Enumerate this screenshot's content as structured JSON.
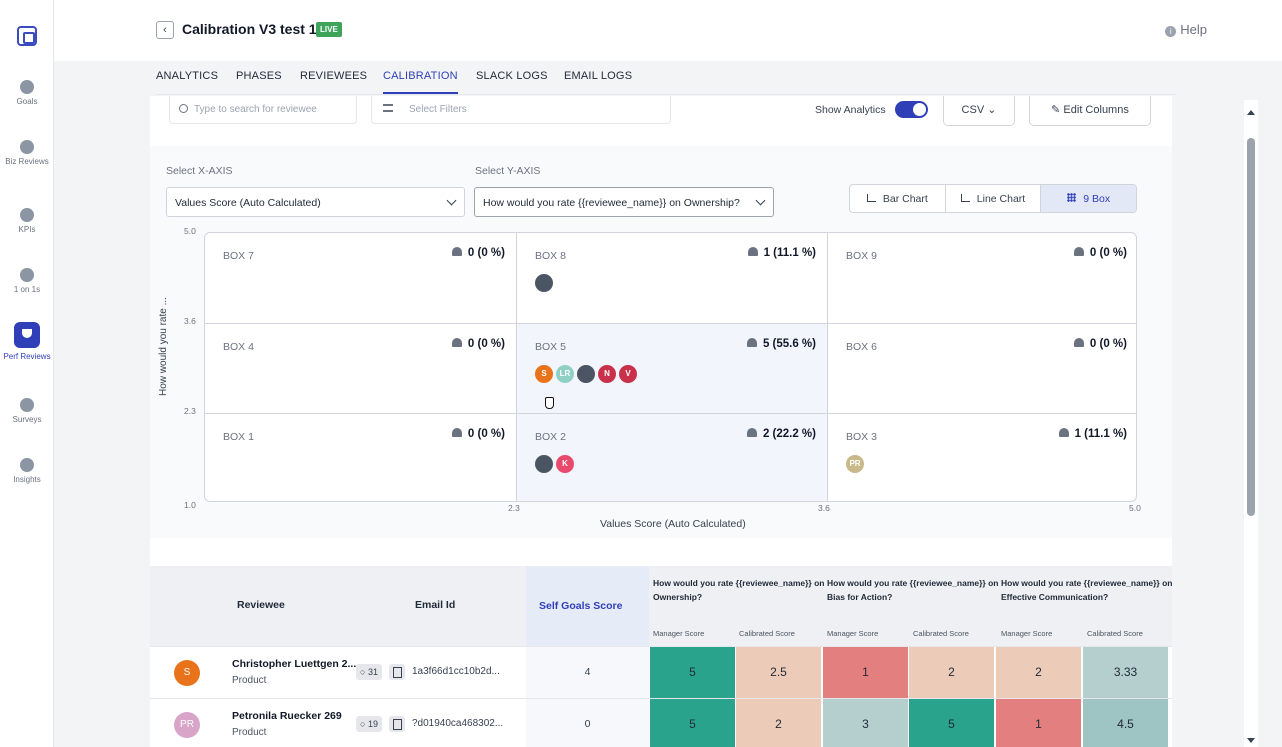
{
  "sidebar": {
    "items": [
      {
        "label": "Goals",
        "icon": "goals-icon"
      },
      {
        "label": "Biz Reviews",
        "icon": "biz-reviews-icon"
      },
      {
        "label": "KPIs",
        "icon": "kpis-icon"
      },
      {
        "label": "1 on 1s",
        "icon": "one-on-ones-icon"
      },
      {
        "label": "Perf Reviews",
        "icon": "perf-reviews-icon",
        "active": true
      },
      {
        "label": "Surveys",
        "icon": "surveys-icon"
      },
      {
        "label": "Insights",
        "icon": "insights-icon"
      }
    ]
  },
  "header": {
    "title": "Calibration V3 test 1",
    "badge": "LIVE",
    "help": "Help"
  },
  "tabs": [
    "ANALYTICS",
    "PHASES",
    "REVIEWEES",
    "CALIBRATION",
    "SLACK LOGS",
    "EMAIL LOGS"
  ],
  "active_tab": "CALIBRATION",
  "toolbar": {
    "search_placeholder": "Type to search for reviewee",
    "filter_placeholder": "Select Filters",
    "show_analytics": "Show Analytics",
    "csv": "CSV",
    "edit_columns": "Edit Columns"
  },
  "axes": {
    "x_label": "Select X-AXIS",
    "y_label": "Select Y-AXIS",
    "x_value": "Values Score (Auto Calculated)",
    "y_value": "How would you rate {{reviewee_name}} on Ownership?",
    "y_axis_title": "How would you rate ...",
    "x_axis_title": "Values Score (Auto Calculated)",
    "y_ticks": [
      "5.0",
      "3.6",
      "2.3",
      "1.0"
    ],
    "x_ticks": [
      "2.3",
      "3.6",
      "5.0"
    ]
  },
  "chart_modes": [
    "Bar Chart",
    "Line Chart",
    "9 Box"
  ],
  "active_chart_mode": "9 Box",
  "boxes": [
    {
      "name": "BOX 7",
      "count": "0 (0 %)",
      "avatars": []
    },
    {
      "name": "BOX 8",
      "count": "1 (11.1 %)",
      "avatars": [
        {
          "type": "photo"
        }
      ]
    },
    {
      "name": "BOX 9",
      "count": "0 (0 %)",
      "avatars": []
    },
    {
      "name": "BOX 4",
      "count": "0 (0 %)",
      "avatars": []
    },
    {
      "name": "BOX 5",
      "count": "5 (55.6 %)",
      "avatars": [
        {
          "text": "S",
          "color": "#e8731a"
        },
        {
          "text": "LR",
          "color": "#8fd0c4"
        },
        {
          "type": "photo"
        },
        {
          "text": "N",
          "color": "#c9304a"
        },
        {
          "text": "V",
          "color": "#c9304a"
        }
      ]
    },
    {
      "name": "BOX 6",
      "count": "0 (0 %)",
      "avatars": []
    },
    {
      "name": "BOX 1",
      "count": "0 (0 %)",
      "avatars": []
    },
    {
      "name": "BOX 2",
      "count": "2 (22.2 %)",
      "avatars": [
        {
          "type": "photo"
        },
        {
          "text": "K",
          "color": "#e94a6b"
        }
      ]
    },
    {
      "name": "BOX 3",
      "count": "1 (11.1 %)",
      "avatars": [
        {
          "text": "PR",
          "color": "#c9b98a"
        }
      ]
    }
  ],
  "table": {
    "columns": {
      "reviewee": "Reviewee",
      "email": "Email Id",
      "self_goals": "Self Goals Score",
      "q1": "How would you rate {{reviewee_name}} on Ownership?",
      "q2": "How would you rate {{reviewee_name}} on Bias for Action?",
      "q3": "How would you rate {{reviewee_name}} on Effective Communication?",
      "manager": "Manager Score",
      "calibrated": "Calibrated Score"
    },
    "rows": [
      {
        "initials": "S",
        "avatar_color": "#e8731a",
        "name": "Christopher Luettgen 2...",
        "dept": "Product",
        "comments": "31",
        "email": "1a3f66d1cc10b2d...",
        "self": "4",
        "scores": [
          {
            "v": "5",
            "c": "#2aa38c"
          },
          {
            "v": "2.5",
            "c": "#eccbb8"
          },
          {
            "v": "1",
            "c": "#e37f7f"
          },
          {
            "v": "2",
            "c": "#eccbb8"
          },
          {
            "v": "2",
            "c": "#eccbb8"
          },
          {
            "v": "3.33",
            "c": "#b5cfcf"
          }
        ]
      },
      {
        "initials": "PR",
        "avatar_color": "#d8a4c8",
        "name": "Petronila Ruecker 269",
        "dept": "Product",
        "comments": "19",
        "email": "?d01940ca468302...",
        "self": "0",
        "scores": [
          {
            "v": "5",
            "c": "#2aa38c"
          },
          {
            "v": "2",
            "c": "#eccbb8"
          },
          {
            "v": "3",
            "c": "#b5cfcf"
          },
          {
            "v": "5",
            "c": "#2aa38c"
          },
          {
            "v": "1",
            "c": "#e37f7f"
          },
          {
            "v": "4.5",
            "c": "#9fc4c4"
          }
        ]
      }
    ]
  }
}
